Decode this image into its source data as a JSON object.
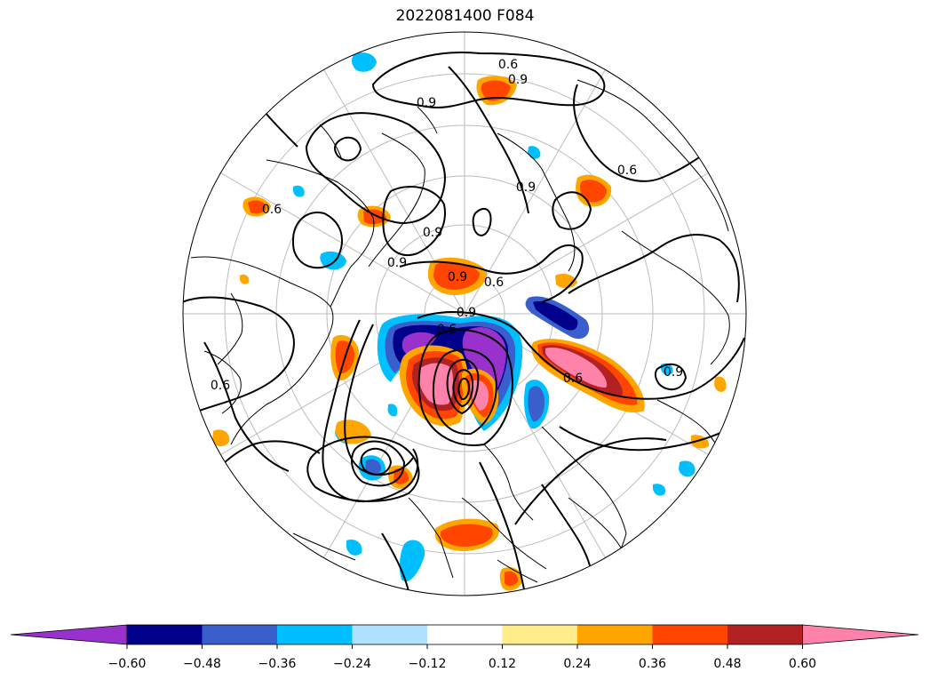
{
  "title": "2022081400 F084",
  "colorbar": {
    "tick_labels": [
      "−0.60",
      "−0.48",
      "−0.36",
      "−0.24",
      "−0.12",
      "0.12",
      "0.24",
      "0.36",
      "0.48",
      "0.60"
    ],
    "colors": [
      "#9932cc",
      "#00008b",
      "#3a5fcd",
      "#00bfff",
      "#b0e2ff",
      "#ffffff",
      "#ffec8b",
      "#ffa500",
      "#ff4500",
      "#b22222",
      "#ff82ab"
    ],
    "extend": "both"
  },
  "contour_labels": [
    "0.6",
    "0.9",
    "0.9",
    "0.6",
    "0.9",
    "0.9",
    "0.6",
    "0.9",
    "0.6",
    "0.9",
    "0.6",
    "0.9",
    "0.6",
    "0.6",
    "0.9"
  ]
}
